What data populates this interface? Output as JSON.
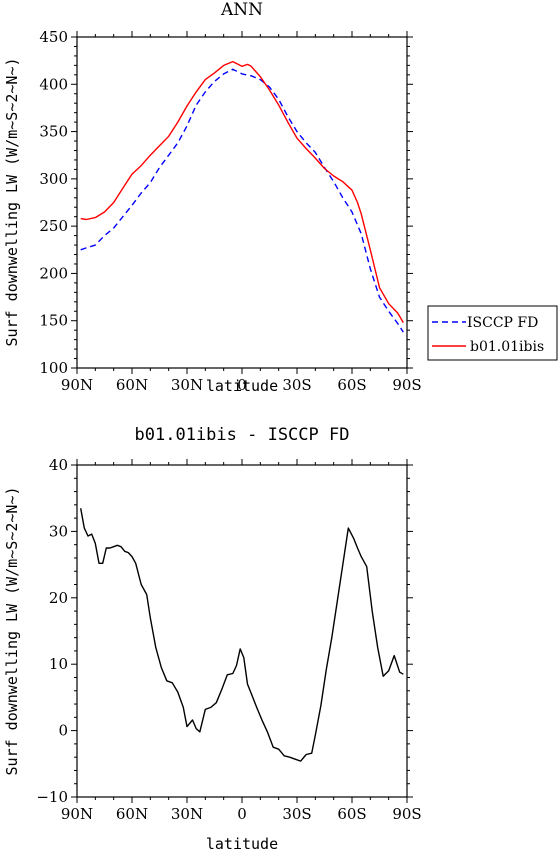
{
  "chart_data": [
    {
      "type": "line",
      "title": "ANN",
      "xlabel": "latitude",
      "ylabel": "Surf downwelling LW (W/m~S~2~N~)",
      "xlim": [
        -90,
        90
      ],
      "ylim": [
        100,
        450
      ],
      "x_ticks": [
        -90,
        -60,
        -30,
        0,
        30,
        60,
        90
      ],
      "x_tick_labels": [
        "90N",
        "60N",
        "30N",
        "0",
        "30S",
        "60S",
        "90S"
      ],
      "y_ticks": [
        100,
        150,
        200,
        250,
        300,
        350,
        400,
        450
      ],
      "y_tick_labels": [
        "100",
        "150",
        "200",
        "250",
        "300",
        "350",
        "400",
        "450"
      ],
      "legend_position": "right",
      "series": [
        {
          "name": "ISCCP FD",
          "color": "#0000ff",
          "style": "dashed",
          "x": [
            -88,
            -85,
            -80,
            -75,
            -70,
            -65,
            -60,
            -55,
            -50,
            -45,
            -40,
            -35,
            -30,
            -25,
            -20,
            -15,
            -10,
            -5,
            0,
            5,
            10,
            15,
            20,
            25,
            30,
            35,
            40,
            45,
            50,
            55,
            60,
            65,
            70,
            75,
            80,
            85,
            88
          ],
          "y": [
            225,
            227,
            230,
            240,
            248,
            260,
            272,
            285,
            296,
            312,
            325,
            338,
            356,
            378,
            392,
            403,
            411,
            416,
            411,
            409,
            405,
            397,
            384,
            366,
            350,
            338,
            328,
            312,
            297,
            280,
            265,
            242,
            205,
            175,
            160,
            147,
            138
          ]
        },
        {
          "name": "b01.01ibis",
          "color": "#ff0000",
          "style": "solid",
          "x": [
            -88,
            -85,
            -80,
            -75,
            -70,
            -65,
            -60,
            -55,
            -50,
            -45,
            -40,
            -35,
            -30,
            -25,
            -20,
            -15,
            -10,
            -5,
            -3,
            0,
            3,
            5,
            10,
            15,
            20,
            25,
            30,
            35,
            40,
            45,
            50,
            55,
            60,
            63,
            65,
            70,
            75,
            80,
            85,
            88
          ],
          "y": [
            258,
            257,
            259,
            265,
            275,
            290,
            305,
            314,
            325,
            335,
            345,
            360,
            377,
            392,
            405,
            412,
            420,
            424,
            422,
            419,
            421,
            419,
            408,
            394,
            378,
            360,
            343,
            332,
            322,
            311,
            303,
            297,
            288,
            275,
            263,
            225,
            185,
            168,
            158,
            148
          ]
        }
      ]
    },
    {
      "type": "line",
      "title": "b01.01ibis - ISCCP FD",
      "xlabel": "latitude",
      "ylabel": "Surf downwelling LW (W/m~S~2~N~)",
      "xlim": [
        -90,
        90
      ],
      "ylim": [
        -10,
        40
      ],
      "x_ticks": [
        -90,
        -60,
        -30,
        0,
        30,
        60,
        90
      ],
      "x_tick_labels": [
        "90N",
        "60N",
        "30N",
        "0",
        "30S",
        "60S",
        "90S"
      ],
      "y_ticks": [
        -10,
        0,
        10,
        20,
        30,
        40
      ],
      "y_tick_labels": [
        "−10",
        "0",
        "10",
        "20",
        "30",
        "40"
      ],
      "series": [
        {
          "color": "#000000",
          "style": "solid",
          "x": [
            -88,
            -86,
            -84,
            -82,
            -80,
            -78,
            -76,
            -74,
            -72,
            -70,
            -68,
            -66,
            -64,
            -62,
            -60,
            -58,
            -55,
            -52,
            -50,
            -47,
            -44,
            -41,
            -38,
            -35,
            -32,
            -30,
            -27,
            -25,
            -23,
            -20,
            -17,
            -14,
            -11,
            -8,
            -5,
            -3,
            -1,
            1,
            3,
            5,
            8,
            11,
            14,
            17,
            20,
            23,
            26,
            29,
            32,
            35,
            38,
            40,
            43,
            46,
            49,
            52,
            55,
            58,
            61,
            63,
            65,
            68,
            71,
            74,
            77,
            80,
            83,
            86,
            88
          ],
          "y": [
            33.5,
            30.5,
            29.3,
            29.6,
            28.2,
            25.2,
            25.2,
            27.5,
            27.5,
            27.7,
            27.9,
            27.7,
            27.0,
            26.8,
            26.2,
            25.2,
            22.0,
            20.5,
            17.0,
            12.5,
            9.5,
            7.5,
            7.2,
            5.8,
            3.5,
            0.6,
            1.6,
            0.3,
            -0.2,
            3.2,
            3.5,
            4.2,
            6.2,
            8.4,
            8.6,
            9.8,
            12.3,
            11.0,
            7.0,
            5.6,
            3.5,
            1.5,
            -0.3,
            -2.5,
            -2.8,
            -3.8,
            -4.0,
            -4.3,
            -4.6,
            -3.6,
            -3.4,
            -0.7,
            3.7,
            9.2,
            14.0,
            19.5,
            25.0,
            30.5,
            28.9,
            27.5,
            26.2,
            24.7,
            18.0,
            12.5,
            8.2,
            9.0,
            11.3,
            8.8,
            8.5
          ]
        }
      ]
    }
  ]
}
